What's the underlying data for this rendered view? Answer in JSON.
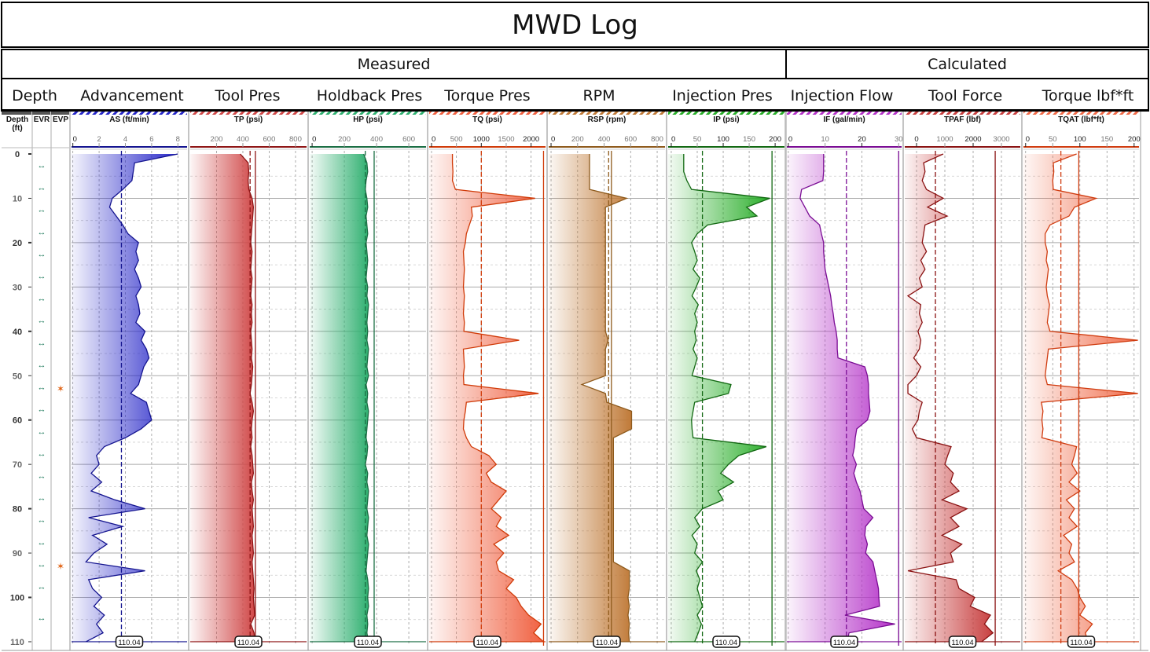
{
  "title": "MWD Log",
  "groups": {
    "measured": "Measured",
    "calculated": "Calculated"
  },
  "track_names": [
    "Depth",
    "Advancement",
    "Tool Pres",
    "Holdback Pres",
    "Torque Pres",
    "RPM",
    "Injection Pres",
    "Injection Flow",
    "Tool Force",
    "Torque lbf*ft"
  ],
  "depth_track": {
    "label_line1": "Depth",
    "label_line2": "(ft)",
    "evr_label": "EVR",
    "evp_label": "EVP"
  },
  "chart_data": {
    "type": "line",
    "orientation": "vertical depth log",
    "depth_unit": "ft",
    "depth_range": [
      0,
      110
    ],
    "depth_ticks": [
      0,
      10,
      20,
      30,
      40,
      50,
      60,
      70,
      80,
      90,
      100,
      110
    ],
    "grid": true,
    "bottom_depth_marker": "110.04",
    "evr_icon": "double-arrow-icon",
    "evr_depths": [
      2.5,
      7.5,
      12.5,
      17.5,
      22.5,
      27.5,
      32.5,
      37.5,
      42.5,
      47.5,
      52.5,
      57.5,
      62.5,
      67.5,
      72.5,
      77.5,
      82.5,
      87.5,
      92.5,
      97.5,
      104.5
    ],
    "evp_icon": "star-icon",
    "evp_depths": [
      53,
      93
    ],
    "depths": [
      0,
      2,
      4,
      6,
      8,
      10,
      12,
      14,
      16,
      18,
      20,
      22,
      24,
      26,
      28,
      30,
      32,
      34,
      36,
      38,
      40,
      42,
      44,
      46,
      48,
      50,
      52,
      54,
      56,
      58,
      60,
      62,
      64,
      66,
      68,
      70,
      72,
      74,
      76,
      78,
      80,
      82,
      84,
      86,
      88,
      90,
      92,
      94,
      96,
      98,
      100,
      102,
      104,
      106,
      108,
      110
    ],
    "tracks": [
      {
        "mnemonic": "AS (ft/min)",
        "group": "measured",
        "color": "#2626c8",
        "line": "#14148f",
        "xlim": [
          -0.1,
          8.7
        ],
        "ticks": [
          {
            "v": 0,
            "l": "0",
            "major": true
          },
          {
            "v": 2,
            "l": "2"
          },
          {
            "v": 4,
            "l": "4"
          },
          {
            "v": 6,
            "l": "6"
          },
          {
            "v": 8,
            "l": "8"
          }
        ],
        "ref_dashed": 3.7,
        "ref_solid": null,
        "values": [
          8.0,
          4.7,
          4.6,
          4.5,
          3.8,
          3.0,
          2.8,
          3.3,
          3.8,
          4.2,
          5.0,
          4.8,
          5.0,
          4.7,
          5.0,
          5.2,
          4.8,
          5.0,
          5.1,
          4.8,
          5.5,
          5.2,
          5.6,
          5.8,
          5.4,
          5.2,
          5.0,
          4.4,
          5.6,
          5.8,
          6.0,
          5.2,
          4.0,
          2.4,
          1.8,
          2.0,
          1.4,
          2.2,
          1.4,
          3.2,
          5.5,
          1.2,
          3.8,
          1.5,
          2.6,
          1.6,
          1.0,
          5.5,
          1.2,
          1.5,
          2.2,
          1.6,
          2.4,
          1.8,
          2.3,
          1.0
        ]
      },
      {
        "mnemonic": "TP (psi)",
        "group": "measured",
        "color": "#d04848",
        "line": "#8e1515",
        "xlim": [
          0,
          884
        ],
        "ticks": [
          {
            "v": 200,
            "l": "200"
          },
          {
            "v": 400,
            "l": "400"
          },
          {
            "v": 600,
            "l": "600"
          },
          {
            "v": 800,
            "l": "800"
          }
        ],
        "ref_dashed": 455,
        "ref_solid": 495,
        "values": [
          380,
          440,
          445,
          440,
          445,
          470,
          480,
          475,
          470,
          465,
          460,
          470,
          465,
          460,
          470,
          465,
          460,
          470,
          465,
          470,
          460,
          465,
          470,
          465,
          475,
          470,
          465,
          455,
          470,
          480,
          470,
          465,
          470,
          460,
          470,
          475,
          480,
          465,
          470,
          480,
          470,
          475,
          480,
          470,
          475,
          480,
          470,
          475,
          480,
          485,
          480,
          485,
          490,
          460,
          485,
          490
        ]
      },
      {
        "mnemonic": "HP (psi)",
        "group": "measured",
        "color": "#2fb070",
        "line": "#1b6e44",
        "xlim": [
          -15,
          707
        ],
        "ticks": [
          {
            "v": 0,
            "l": "0",
            "major": true
          },
          {
            "v": 200,
            "l": "200"
          },
          {
            "v": 400,
            "l": "400"
          },
          {
            "v": 600,
            "l": "600"
          }
        ],
        "ref_dashed": 330,
        "ref_solid": 385,
        "values": [
          320,
          340,
          345,
          335,
          330,
          340,
          345,
          335,
          340,
          345,
          335,
          340,
          345,
          340,
          335,
          345,
          340,
          350,
          345,
          340,
          345,
          340,
          350,
          345,
          340,
          350,
          335,
          345,
          340,
          350,
          345,
          340,
          335,
          345,
          340,
          330,
          345,
          340,
          350,
          345,
          340,
          350,
          345,
          340,
          350,
          345,
          340,
          335,
          345,
          350,
          345,
          350,
          340,
          345,
          340,
          350
        ]
      },
      {
        "mnemonic": "TQ (psi)",
        "group": "measured",
        "color": "#f06040",
        "line": "#d03a08",
        "xlim": [
          -47,
          2290
        ],
        "ticks": [
          {
            "v": 0,
            "l": "0",
            "major": true
          },
          {
            "v": 500,
            "l": "500"
          },
          {
            "v": 1000,
            "l": "1000",
            "major": true
          },
          {
            "v": 1500,
            "l": "1500"
          },
          {
            "v": 2000,
            "l": "2000",
            "major": true
          }
        ],
        "ref_dashed": 1000,
        "ref_solid": 2250,
        "values": [
          420,
          420,
          430,
          420,
          480,
          2080,
          800,
          820,
          760,
          700,
          680,
          640,
          650,
          660,
          650,
          640,
          660,
          650,
          640,
          660,
          650,
          1760,
          640,
          650,
          660,
          640,
          650,
          2150,
          700,
          680,
          650,
          640,
          700,
          800,
          1150,
          1300,
          1100,
          1200,
          1500,
          1350,
          1200,
          1400,
          1300,
          1550,
          1250,
          1450,
          1300,
          1350,
          1650,
          1500,
          1700,
          1800,
          1950,
          2200,
          2050,
          2250
        ]
      },
      {
        "mnemonic": "RSP (rpm)",
        "group": "measured",
        "color": "#c07a38",
        "line": "#8e5a1c",
        "xlim": [
          -18,
          859
        ],
        "ticks": [
          {
            "v": 0,
            "l": "0",
            "major": true
          },
          {
            "v": 200,
            "l": "200"
          },
          {
            "v": 400,
            "l": "400"
          },
          {
            "v": 600,
            "l": "600"
          },
          {
            "v": 800,
            "l": "800"
          }
        ],
        "ref_dashed": 434,
        "ref_solid": 455,
        "values": [
          290,
          290,
          290,
          290,
          290,
          570,
          410,
          410,
          410,
          410,
          410,
          410,
          410,
          410,
          410,
          410,
          410,
          410,
          410,
          410,
          410,
          430,
          410,
          410,
          410,
          410,
          232,
          410,
          420,
          607,
          607,
          607,
          470,
          470,
          470,
          470,
          470,
          470,
          470,
          470,
          470,
          470,
          470,
          470,
          470,
          470,
          470,
          590,
          590,
          590,
          580,
          590,
          580,
          590,
          585,
          590
        ]
      },
      {
        "mnemonic": "IP (psi)",
        "group": "measured",
        "color": "#2aae2a",
        "line": "#126812",
        "xlim": [
          -6,
          218
        ],
        "ticks": [
          {
            "v": 0,
            "l": "0",
            "major": true
          },
          {
            "v": 50,
            "l": "50"
          },
          {
            "v": 100,
            "l": "100",
            "major": true
          },
          {
            "v": 150,
            "l": "150"
          },
          {
            "v": 200,
            "l": "200",
            "major": true
          }
        ],
        "ref_dashed": 60,
        "ref_solid": 194,
        "values": [
          24,
          24,
          24,
          30,
          39,
          190,
          145,
          165,
          70,
          50,
          39,
          45,
          50,
          42,
          55,
          48,
          40,
          52,
          45,
          50,
          45,
          48,
          42,
          50,
          45,
          40,
          115,
          110,
          45,
          42,
          39,
          40,
          42,
          183,
          130,
          110,
          95,
          120,
          90,
          100,
          60,
          45,
          55,
          40,
          50,
          45,
          60,
          48,
          55,
          50,
          55,
          60,
          50,
          58,
          52,
          45
        ]
      },
      {
        "mnemonic": "IF (gal/min)",
        "group": "calculated",
        "color": "#b432c8",
        "line": "#7a0c94",
        "xlim": [
          -0.4,
          30.8
        ],
        "ticks": [
          {
            "v": 0,
            "l": "0",
            "major": true
          },
          {
            "v": 10,
            "l": "10"
          },
          {
            "v": 20,
            "l": "20",
            "major": true
          },
          {
            "v": 30,
            "l": "30"
          }
        ],
        "ref_dashed": 15.8,
        "ref_solid": 30,
        "values": [
          9.6,
          9.6,
          9.6,
          9.4,
          3.6,
          3.2,
          4.5,
          5.8,
          8.5,
          9.0,
          9.6,
          9.6,
          9.8,
          10.0,
          10.5,
          11.0,
          11.5,
          11.8,
          12.2,
          12.5,
          13.0,
          13.3,
          13.3,
          13.5,
          20.8,
          21.5,
          21.8,
          21.8,
          22.0,
          22.2,
          21.5,
          18.6,
          18.2,
          18.0,
          17.5,
          18.5,
          17.8,
          18.5,
          19.5,
          20.0,
          20.5,
          23.0,
          21.0,
          20.8,
          21.5,
          21.0,
          23.0,
          23.5,
          24.0,
          24.5,
          24.6,
          24.8,
          15.4,
          29.0,
          16.5,
          16.0
        ]
      },
      {
        "mnemonic": "TPAF (lbf)",
        "group": "calculated",
        "color": "#c84040",
        "line": "#8a1212",
        "xlim": [
          -417,
          3667
        ],
        "ticks": [
          {
            "v": 0,
            "l": "0",
            "major": true
          },
          {
            "v": 1000,
            "l": "1000"
          },
          {
            "v": 2000,
            "l": "2000",
            "major": true
          },
          {
            "v": 3000,
            "l": "3000"
          }
        ],
        "ref_dashed": 667,
        "ref_solid": 2780,
        "values": [
          944,
          250,
          300,
          200,
          350,
          944,
          390,
          1083,
          300,
          250,
          200,
          350,
          150,
          300,
          100,
          200,
          -305,
          150,
          100,
          200,
          50,
          150,
          100,
          -100,
          150,
          0,
          -305,
          -305,
          200,
          100,
          50,
          -150,
          0,
          1222,
          1100,
          1000,
          1300,
          1200,
          1500,
          900,
          1780,
          1200,
          1500,
          900,
          1600,
          1200,
          1300,
          -305,
          1400,
          1500,
          2055,
          1900,
          2611,
          2400,
          2700,
          2300
        ]
      },
      {
        "mnemonic": "TQAT (lbf*ft)",
        "group": "calculated",
        "color": "#f06a48",
        "line": "#d03c10",
        "xlim": [
          -4,
          209
        ],
        "ticks": [
          {
            "v": 0,
            "l": "0",
            "major": true
          },
          {
            "v": 50,
            "l": "50"
          },
          {
            "v": 100,
            "l": "100",
            "major": true
          },
          {
            "v": 150,
            "l": "150"
          },
          {
            "v": 200,
            "l": "200",
            "major": true
          }
        ],
        "ref_dashed": 65,
        "ref_solid": 98,
        "values": [
          94,
          51,
          52,
          50,
          51,
          130,
          90,
          80,
          45,
          36,
          36,
          40,
          38,
          42,
          40,
          38,
          40,
          44,
          42,
          40,
          45,
          207,
          42,
          40,
          38,
          36,
          40,
          207,
          29,
          32,
          30,
          32,
          30,
          94,
          90,
          85,
          95,
          80,
          100,
          75,
          90,
          80,
          95,
          70,
          85,
          80,
          90,
          60,
          85,
          95,
          100,
          110,
          100,
          123,
          110,
          115
        ]
      }
    ]
  }
}
